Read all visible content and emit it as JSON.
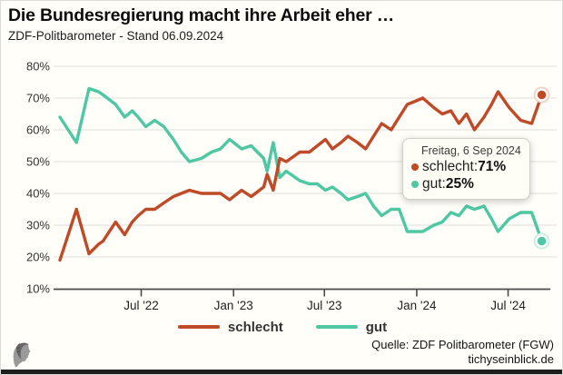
{
  "header": {
    "title": "Die Bundesregierung macht ihre Arbeit eher …",
    "subtitle": "ZDF-Politbarometer - Stand 06.09.2024"
  },
  "colors": {
    "schlecht": "#bf4a28",
    "gut": "#4ec7a3",
    "schlecht_pale": "#f2d3c5",
    "gut_pale": "#cdeee1",
    "grid": "#eae9e5",
    "axis": "#4a4a4a",
    "background": "#fffef8"
  },
  "tooltip": {
    "date_label": "Freitag, 6 Sep 2024",
    "rows": [
      {
        "series": "schlecht",
        "label": "schlecht: ",
        "value": "71%"
      },
      {
        "series": "gut",
        "label": "gut: ",
        "value": "25%"
      }
    ]
  },
  "legend": {
    "items": [
      {
        "series": "schlecht",
        "label": "schlecht"
      },
      {
        "series": "gut",
        "label": "gut"
      }
    ]
  },
  "footer": {
    "source": "Quelle: ZDF Politbarometer (FGW)",
    "site": "tichyseinblick.de"
  },
  "chart_data": {
    "type": "line",
    "title": "Die Bundesregierung macht ihre Arbeit eher …",
    "subtitle": "ZDF-Politbarometer - Stand 06.09.2024",
    "ylim": [
      10,
      80
    ],
    "grid": "horizontal",
    "legend_position": "bottom",
    "x_domain": [
      "2022-01-11",
      "2024-09-14"
    ],
    "y_ticks": [
      {
        "value": 80,
        "label": "80%"
      },
      {
        "value": 70,
        "label": "70%"
      },
      {
        "value": 60,
        "label": "60%"
      },
      {
        "value": 50,
        "label": "50%"
      },
      {
        "value": 40,
        "label": "40%"
      },
      {
        "value": 30,
        "label": "30%"
      },
      {
        "value": 20,
        "label": "20%"
      },
      {
        "value": 10,
        "label": "10%"
      }
    ],
    "x_ticks": [
      {
        "date": "2022-07-01",
        "label": "Jul '22"
      },
      {
        "date": "2023-01-01",
        "label": "Jan '23"
      },
      {
        "date": "2023-07-01",
        "label": "Jul '23"
      },
      {
        "date": "2024-01-01",
        "label": "Jan '24"
      },
      {
        "date": "2024-07-01",
        "label": "Jul '24"
      }
    ],
    "dates": [
      "2022-01-20",
      "2022-02-22",
      "2022-03-19",
      "2022-04-07",
      "2022-04-16",
      "2022-05-11",
      "2022-05-29",
      "2022-06-13",
      "2022-06-25",
      "2022-07-10",
      "2022-07-28",
      "2022-08-15",
      "2022-09-03",
      "2022-09-19",
      "2022-10-05",
      "2022-10-29",
      "2022-11-18",
      "2022-12-06",
      "2022-12-24",
      "2023-01-17",
      "2023-02-05",
      "2023-03-02",
      "2023-03-09",
      "2023-03-21",
      "2023-04-03",
      "2023-04-16",
      "2023-05-13",
      "2023-06-01",
      "2023-06-17",
      "2023-07-03",
      "2023-07-17",
      "2023-08-03",
      "2023-08-17",
      "2023-09-05",
      "2023-09-21",
      "2023-10-07",
      "2023-10-23",
      "2023-11-11",
      "2023-11-27",
      "2023-12-13",
      "2023-12-29",
      "2024-01-13",
      "2024-02-04",
      "2024-02-21",
      "2024-03-09",
      "2024-03-25",
      "2024-04-09",
      "2024-04-25",
      "2024-05-14",
      "2024-05-29",
      "2024-06-11",
      "2024-07-03",
      "2024-07-26",
      "2024-08-17",
      "2024-09-06"
    ],
    "series": [
      {
        "name": "schlecht",
        "color_key": "schlecht",
        "values": [
          19,
          35,
          21,
          24,
          25,
          31,
          27,
          31,
          33,
          35,
          35,
          37,
          39,
          40,
          41,
          40,
          40,
          40,
          38,
          41,
          39,
          42,
          46,
          41,
          51,
          50,
          53,
          53,
          55,
          57,
          54,
          56,
          58,
          56,
          54,
          58,
          62,
          60,
          64,
          68,
          69,
          70,
          67,
          65,
          66,
          62,
          65,
          60,
          64,
          68,
          72,
          67,
          63,
          62,
          71
        ]
      },
      {
        "name": "gut",
        "color_key": "gut",
        "values": [
          64,
          56,
          73,
          72,
          71,
          68,
          64,
          66,
          64,
          61,
          63,
          61,
          57,
          53,
          50,
          51,
          53,
          54,
          57,
          54,
          55,
          51,
          47,
          56,
          45,
          47,
          44,
          43,
          43,
          41,
          42,
          40,
          38,
          39,
          40,
          36,
          33,
          35,
          35,
          28,
          28,
          28,
          30,
          31,
          34,
          33,
          36,
          35,
          36,
          32,
          28,
          32,
          34,
          34,
          25
        ]
      }
    ],
    "end_markers": [
      {
        "series": "schlecht",
        "date": "2024-09-06",
        "value": 71
      },
      {
        "series": "gut",
        "date": "2024-09-06",
        "value": 25
      }
    ]
  }
}
